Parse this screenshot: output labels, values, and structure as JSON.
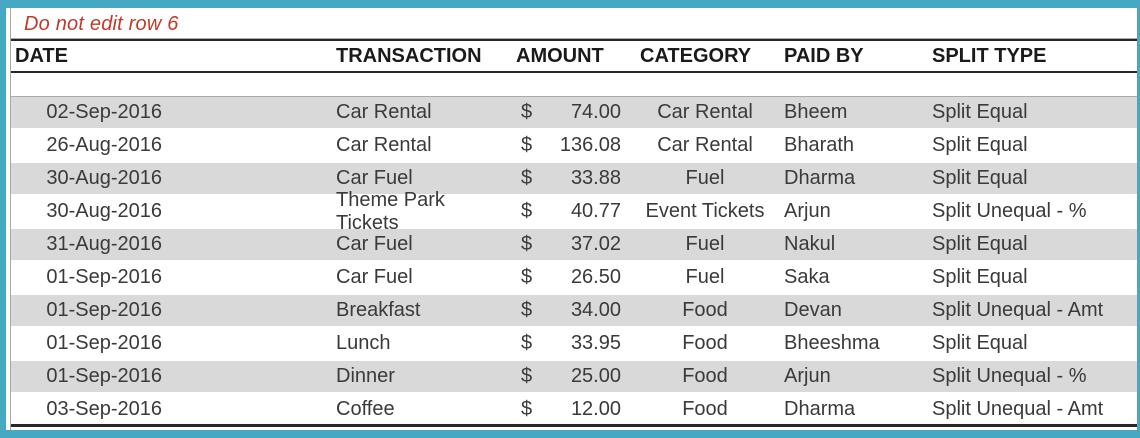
{
  "note": {
    "text": "Do not edit row 6"
  },
  "table": {
    "headers": [
      "DATE",
      "TRANSACTION",
      "AMOUNT",
      "CATEGORY",
      "PAID BY",
      "SPLIT TYPE"
    ],
    "currency_symbol": "$",
    "rows": [
      {
        "date": "02-Sep-2016",
        "transaction": "Car Rental",
        "amount": "74.00",
        "category": "Car Rental",
        "paid_by": "Bheem",
        "split_type": "Split Equal"
      },
      {
        "date": "26-Aug-2016",
        "transaction": "Car Rental",
        "amount": "136.08",
        "category": "Car Rental",
        "paid_by": "Bharath",
        "split_type": "Split Equal"
      },
      {
        "date": "30-Aug-2016",
        "transaction": "Car Fuel",
        "amount": "33.88",
        "category": "Fuel",
        "paid_by": "Dharma",
        "split_type": "Split Equal"
      },
      {
        "date": "30-Aug-2016",
        "transaction": "Theme Park Tickets",
        "amount": "40.77",
        "category": "Event Tickets",
        "paid_by": "Arjun",
        "split_type": "Split Unequal - %"
      },
      {
        "date": "31-Aug-2016",
        "transaction": "Car Fuel",
        "amount": "37.02",
        "category": "Fuel",
        "paid_by": "Nakul",
        "split_type": "Split Equal"
      },
      {
        "date": "01-Sep-2016",
        "transaction": "Car Fuel",
        "amount": "26.50",
        "category": "Fuel",
        "paid_by": "Saka",
        "split_type": "Split Equal"
      },
      {
        "date": "01-Sep-2016",
        "transaction": "Breakfast",
        "amount": "34.00",
        "category": "Food",
        "paid_by": "Devan",
        "split_type": "Split Unequal - Amt"
      },
      {
        "date": "01-Sep-2016",
        "transaction": "Lunch",
        "amount": "33.95",
        "category": "Food",
        "paid_by": "Bheeshma",
        "split_type": "Split Equal"
      },
      {
        "date": "01-Sep-2016",
        "transaction": "Dinner",
        "amount": "25.00",
        "category": "Food",
        "paid_by": "Arjun",
        "split_type": "Split Unequal - %"
      },
      {
        "date": "03-Sep-2016",
        "transaction": "Coffee",
        "amount": "12.00",
        "category": "Food",
        "paid_by": "Dharma",
        "split_type": "Split Unequal - Amt"
      }
    ]
  },
  "colors": {
    "frame_teal": "#47A8C4",
    "row_stripe_gray": "#D9D9D9",
    "note_red": "#C03A2B",
    "dark_border": "#262626",
    "grid_gray": "#ABABAB"
  }
}
